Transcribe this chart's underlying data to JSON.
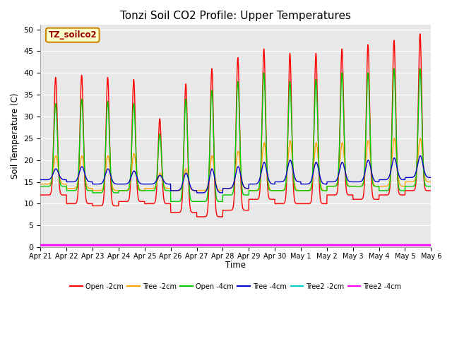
{
  "title": "Tonzi Soil CO2 Profile: Upper Temperatures",
  "ylabel": "Soil Temperature (C)",
  "xlabel": "Time",
  "subtitle_box": "TZ_soilco2",
  "ylim": [
    0,
    51
  ],
  "yticks": [
    0,
    5,
    10,
    15,
    20,
    25,
    30,
    35,
    40,
    45,
    50
  ],
  "x_tick_labels": [
    "Apr 21",
    "Apr 22",
    "Apr 23",
    "Apr 24",
    "Apr 25",
    "Apr 26",
    "Apr 27",
    "Apr 28",
    "Apr 29",
    "Apr 30",
    "May 1",
    "May 2",
    "May 3",
    "May 4",
    "May 5",
    "May 6"
  ],
  "series": [
    {
      "name": "Open -2cm",
      "color": "#ff0000",
      "lw": 1.0
    },
    {
      "name": "Tree -2cm",
      "color": "#ffa500",
      "lw": 1.0
    },
    {
      "name": "Open -4cm",
      "color": "#00cc00",
      "lw": 1.0
    },
    {
      "name": "Tree -4cm",
      "color": "#0000cc",
      "lw": 1.0
    },
    {
      "name": "Tree2 -2cm",
      "color": "#00cccc",
      "lw": 1.0
    },
    {
      "name": "Tree2 -4cm",
      "color": "#ff00ff",
      "lw": 2.0
    }
  ],
  "background_color": "#e8e8e8",
  "title_fontsize": 11,
  "n_days": 15,
  "points_per_day": 144
}
